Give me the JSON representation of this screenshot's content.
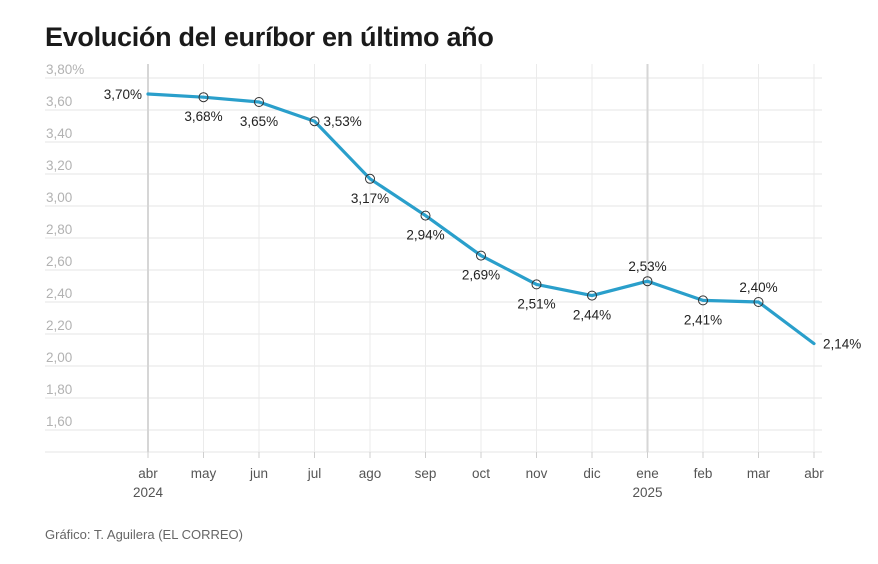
{
  "title": "Evolución del euríbor en último año",
  "credit": "Gráfico: T. Aguilera (EL CORREO)",
  "chart_data": {
    "type": "line",
    "title": "Evolución del euríbor en último año",
    "xlabel": "",
    "ylabel": "",
    "ylim": [
      1.5,
      3.8
    ],
    "y_ticks": [
      "3,80%",
      "3,60",
      "3,40",
      "3,20",
      "3,00",
      "2,80",
      "2,60",
      "2,40",
      "2,20",
      "2,00",
      "1,80",
      "1,60"
    ],
    "categories": [
      "abr",
      "may",
      "jun",
      "jul",
      "ago",
      "sep",
      "oct",
      "nov",
      "dic",
      "ene",
      "feb",
      "mar",
      "abr"
    ],
    "year_labels": [
      {
        "category_index": 0,
        "text": "2024"
      },
      {
        "category_index": 9,
        "text": "2025"
      }
    ],
    "series": [
      {
        "values": [
          3.7,
          3.68,
          3.65,
          3.53,
          3.17,
          2.94,
          2.69,
          2.51,
          2.44,
          2.53,
          2.41,
          2.4,
          2.14
        ],
        "labels": [
          "3,70%",
          "3,68%",
          "3,65%",
          "3,53%",
          "3,17%",
          "2,94%",
          "2,69%",
          "2,51%",
          "2,44%",
          "2,53%",
          "2,41%",
          "2,40%",
          "2,14%"
        ],
        "color": "#2a9fcb"
      }
    ],
    "grid": true,
    "legend": "none"
  }
}
